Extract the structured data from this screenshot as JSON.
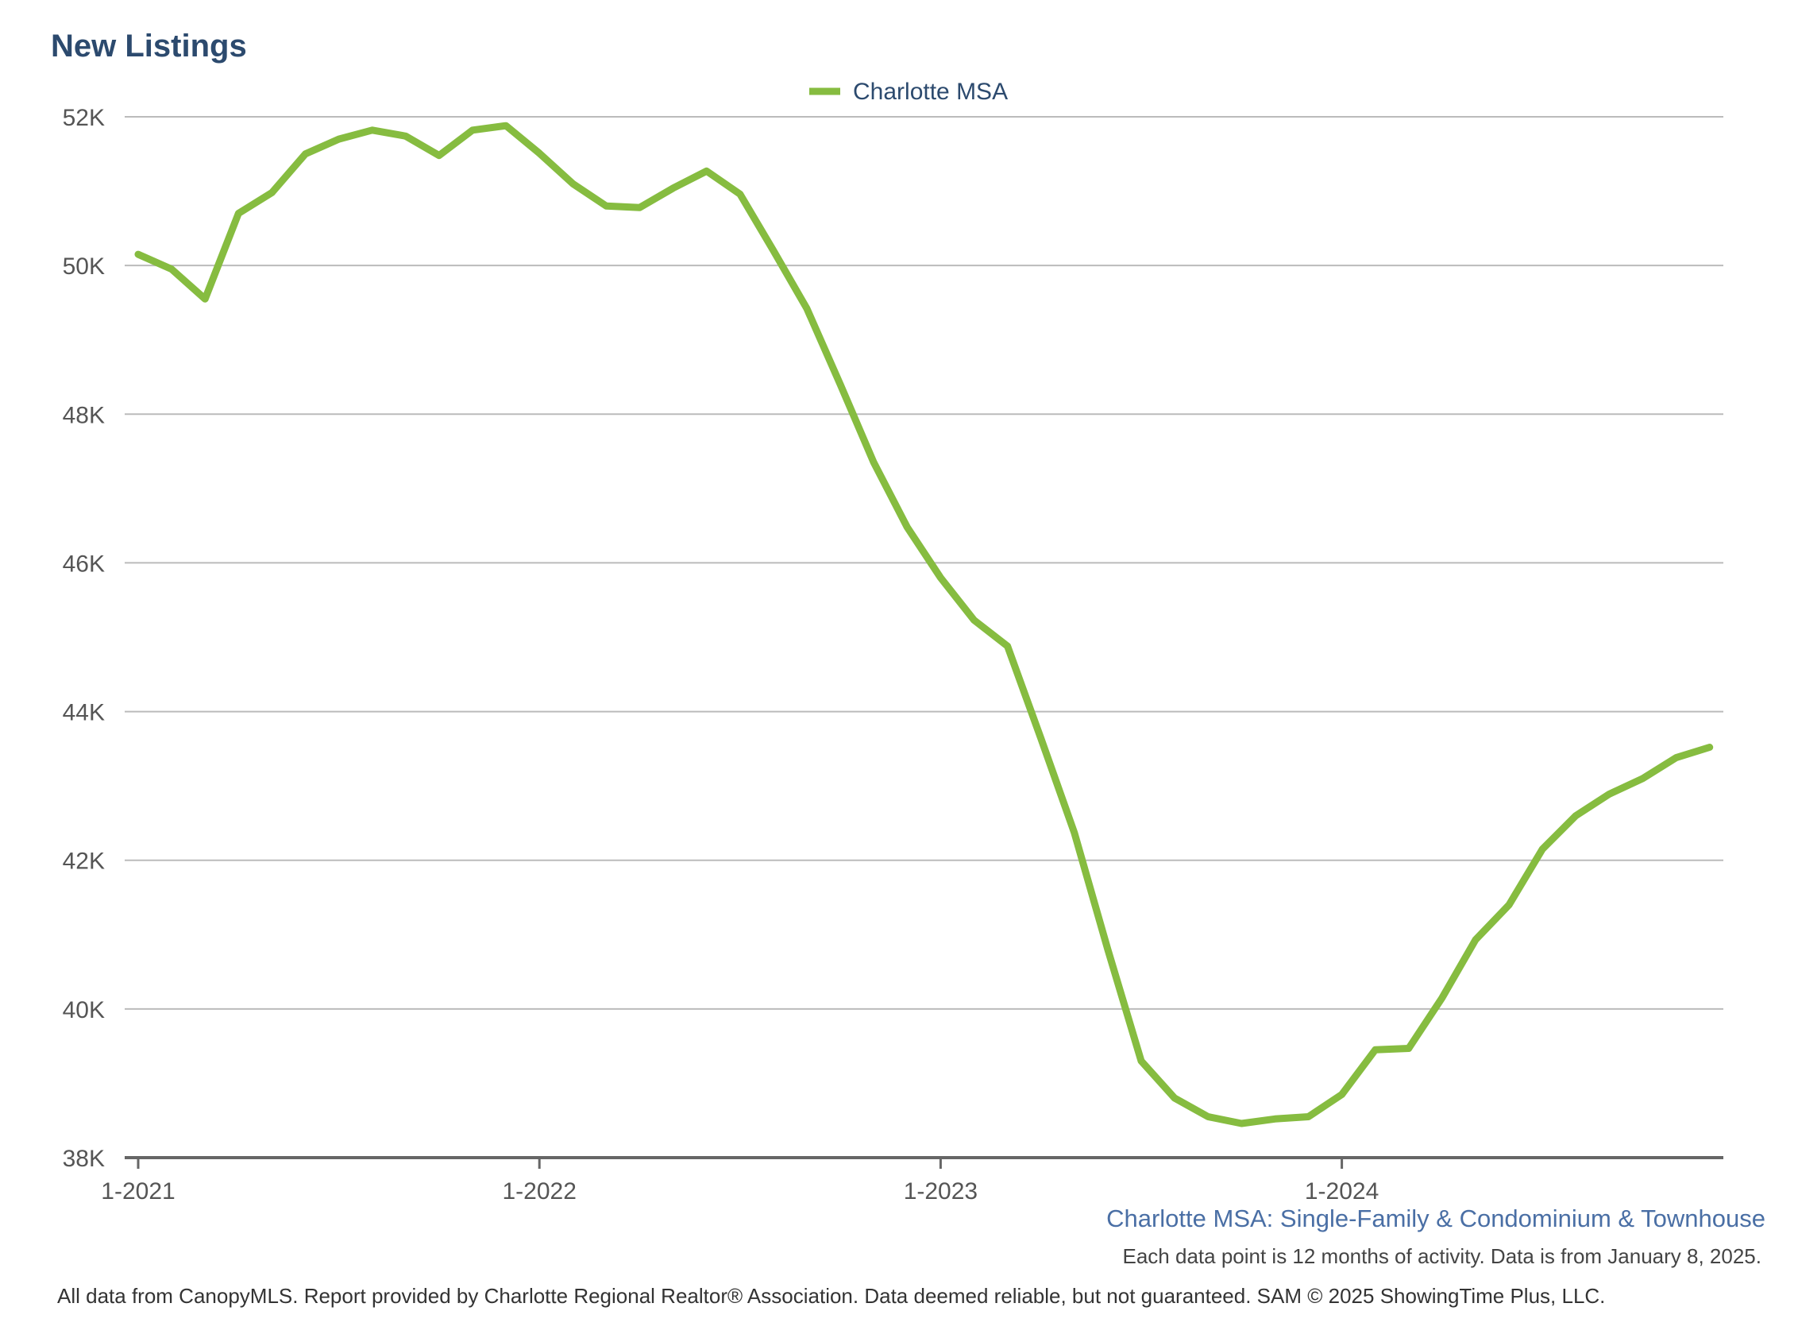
{
  "title": "New Listings",
  "subtitle": "Charlotte MSA: Single-Family & Condominium & Townhouse",
  "note": "Each data point is 12 months of activity. Data is from January 8, 2025.",
  "footer": "All data from CanopyMLS. Report provided by Charlotte Regional Realtor® Association. Data deemed reliable, but not guaranteed. SAM © 2025 ShowingTime Plus, LLC.",
  "colors": {
    "series": "#86bc40",
    "title": "#2c4a6e",
    "grid": "#bbbbbb",
    "axis": "#666666"
  },
  "chart_data": {
    "type": "line",
    "title": "New Listings",
    "xlabel": "",
    "ylabel": "",
    "ylim": [
      38000,
      52000
    ],
    "yticks": [
      38000,
      40000,
      42000,
      44000,
      46000,
      48000,
      50000,
      52000
    ],
    "ytick_labels": [
      "38K",
      "40K",
      "42K",
      "44K",
      "46K",
      "48K",
      "50K",
      "52K"
    ],
    "xtick_labels": [
      "1-2021",
      "1-2022",
      "1-2023",
      "1-2024"
    ],
    "grid": true,
    "legend": "top-center",
    "categories": [
      "1-2021",
      "2-2021",
      "3-2021",
      "4-2021",
      "5-2021",
      "6-2021",
      "7-2021",
      "8-2021",
      "9-2021",
      "10-2021",
      "11-2021",
      "12-2021",
      "1-2022",
      "2-2022",
      "3-2022",
      "4-2022",
      "5-2022",
      "6-2022",
      "7-2022",
      "8-2022",
      "9-2022",
      "10-2022",
      "11-2022",
      "12-2022",
      "1-2023",
      "2-2023",
      "3-2023",
      "4-2023",
      "5-2023",
      "6-2023",
      "7-2023",
      "8-2023",
      "9-2023",
      "10-2023",
      "11-2023",
      "12-2023",
      "1-2024",
      "2-2024",
      "3-2024",
      "4-2024",
      "5-2024",
      "6-2024",
      "7-2024",
      "8-2024",
      "9-2024",
      "10-2024",
      "11-2024",
      "12-2024"
    ],
    "series": [
      {
        "name": "Charlotte MSA",
        "values": [
          50150,
          49950,
          49550,
          50700,
          50980,
          51500,
          51700,
          51820,
          51740,
          51480,
          51820,
          51880,
          51510,
          51100,
          50800,
          50780,
          51040,
          51270,
          50960,
          50200,
          49420,
          48400,
          47350,
          46480,
          45800,
          45230,
          44880,
          43640,
          42370,
          40800,
          39300,
          38800,
          38550,
          38460,
          38520,
          38550,
          38850,
          39450,
          39470,
          40150,
          40930,
          41400,
          42150,
          42600,
          42890,
          43100,
          43380,
          43520
        ]
      }
    ]
  }
}
